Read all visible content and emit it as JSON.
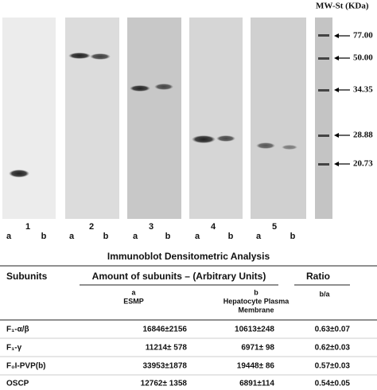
{
  "blot": {
    "panels": [
      "1",
      "2",
      "3",
      "4",
      "5"
    ],
    "lanes": [
      "a",
      "b"
    ],
    "marker_title": "MW-St (KDa)",
    "markers": [
      "77.00",
      "50.00",
      "34.35",
      "28.88",
      "20.73"
    ]
  },
  "table": {
    "title": "Immunoblot Densitometric Analysis",
    "header": [
      "Subunits",
      "Amount of subunits – (Arbitrary Units)",
      "Ratio"
    ],
    "subheader": {
      "a": [
        "a",
        "ESMP"
      ],
      "b": [
        "b",
        "Hepatocyte Plasma",
        "Membrane"
      ],
      "ratio": "b/a"
    },
    "rows": [
      [
        "F₁-α/β",
        "16846±2156",
        "10613±248",
        "0.63±0.07"
      ],
      [
        "F₁-γ",
        "11214± 578",
        "6971± 98",
        "0.62±0.03"
      ],
      [
        "F₀I-PVP(b)",
        "33953±1878",
        "19448± 86",
        "0.57±0.03"
      ],
      [
        "OSCP",
        "12762± 1358",
        "6891±114",
        "0.54±0.05"
      ]
    ]
  }
}
